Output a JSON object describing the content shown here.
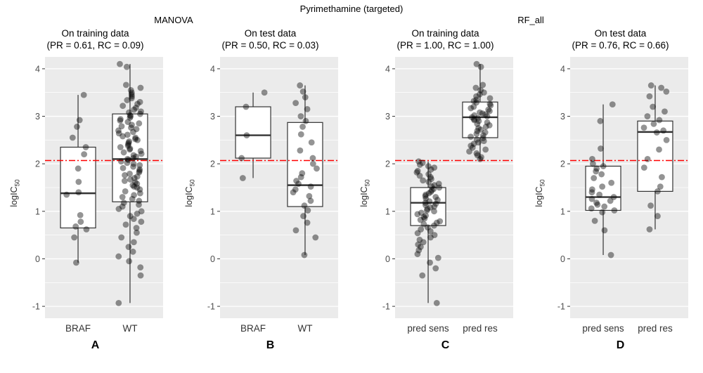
{
  "figure": {
    "title": "Pyrimethamine (targeted)",
    "methods": [
      "MANOVA",
      "RF_all"
    ],
    "ylabel_main": "logIC",
    "ylabel_sub": "50"
  },
  "style": {
    "panel_bg": "#EBEBEB",
    "grid_color": "#FFFFFF",
    "box_fill": "#FFFFFF",
    "box_stroke": "#333333",
    "point_color": "#000000",
    "point_opacity": 0.42,
    "reference_color": "#FF0000",
    "tick_text_color": "#4D4D4D",
    "axis_tick_color": "#333333"
  },
  "chart_data": [
    {
      "type": "boxplot",
      "panel_letter": "A",
      "title": "On training data",
      "subtitle": "(PR = 0.61, RC = 0.09)",
      "ylabel": "logIC50",
      "ylim": [
        -1.25,
        4.25
      ],
      "yticks": [
        -1,
        0,
        1,
        2,
        3,
        4
      ],
      "reference_line": 2.07,
      "categories": [
        "BRAF",
        "WT"
      ],
      "groups": [
        {
          "label": "BRAF",
          "box": {
            "whisker_low": -0.08,
            "q1": 0.65,
            "median": 1.38,
            "q3": 2.35,
            "whisker_high": 3.45
          },
          "points": [
            3.45,
            2.92,
            2.78,
            2.55,
            2.35,
            2.2,
            1.9,
            1.62,
            1.4,
            1.35,
            0.92,
            0.78,
            0.68,
            0.62,
            0.45,
            -0.08
          ]
        },
        {
          "label": "WT",
          "box": {
            "whisker_low": -0.93,
            "q1": 1.2,
            "median": 2.1,
            "q3": 3.05,
            "whisker_high": 4.1
          },
          "points": [
            4.1,
            4.04,
            3.66,
            3.6,
            3.55,
            3.5,
            3.46,
            3.42,
            3.38,
            3.34,
            3.3,
            3.26,
            3.22,
            3.18,
            3.14,
            3.1,
            3.08,
            3.05,
            3.02,
            3.0,
            2.97,
            2.94,
            2.91,
            2.88,
            2.85,
            2.82,
            2.79,
            2.76,
            2.73,
            2.7,
            2.67,
            2.64,
            2.61,
            2.58,
            2.55,
            2.52,
            2.5,
            2.47,
            2.44,
            2.41,
            2.38,
            2.35,
            2.32,
            2.3,
            2.27,
            2.24,
            2.21,
            2.18,
            2.15,
            2.12,
            2.1,
            2.08,
            2.05,
            2.02,
            2.0,
            1.97,
            1.94,
            1.91,
            1.88,
            1.85,
            1.82,
            1.79,
            1.76,
            1.73,
            1.7,
            1.67,
            1.64,
            1.61,
            1.58,
            1.55,
            1.52,
            1.5,
            1.46,
            1.42,
            1.38,
            1.34,
            1.3,
            1.26,
            1.22,
            1.18,
            1.14,
            1.1,
            1.05,
            1.0,
            0.95,
            0.9,
            0.84,
            0.78,
            0.72,
            0.65,
            0.55,
            0.45,
            0.35,
            0.25,
            0.15,
            0.05,
            -0.05,
            -0.18,
            -0.35,
            -0.93
          ]
        }
      ]
    },
    {
      "type": "boxplot",
      "panel_letter": "B",
      "title": "On test data",
      "subtitle": "(PR = 0.50, RC = 0.03)",
      "ylabel": "logIC50",
      "ylim": [
        -1.25,
        4.25
      ],
      "yticks": [
        -1,
        0,
        1,
        2,
        3,
        4
      ],
      "reference_line": 2.07,
      "categories": [
        "BRAF",
        "WT"
      ],
      "groups": [
        {
          "label": "BRAF",
          "box": {
            "whisker_low": 1.7,
            "q1": 2.12,
            "median": 2.6,
            "q3": 3.2,
            "whisker_high": 3.5
          },
          "points": [
            3.5,
            3.2,
            2.6,
            2.12,
            1.7
          ]
        },
        {
          "label": "WT",
          "box": {
            "whisker_low": 0.08,
            "q1": 1.1,
            "median": 1.55,
            "q3": 2.87,
            "whisker_high": 3.65
          },
          "points": [
            3.65,
            3.52,
            3.4,
            3.28,
            3.15,
            3.0,
            2.9,
            2.78,
            2.62,
            2.45,
            2.28,
            2.12,
            2.0,
            1.9,
            1.8,
            1.72,
            1.64,
            1.58,
            1.52,
            1.46,
            1.4,
            1.32,
            1.22,
            1.12,
            1.02,
            0.9,
            0.76,
            0.6,
            0.45,
            0.08
          ]
        }
      ]
    },
    {
      "type": "boxplot",
      "panel_letter": "C",
      "title": "On training data",
      "subtitle": "(PR = 1.00, RC = 1.00)",
      "ylabel": "logIC50",
      "ylim": [
        -1.25,
        4.25
      ],
      "yticks": [
        -1,
        0,
        1,
        2,
        3,
        4
      ],
      "reference_line": 2.07,
      "categories": [
        "pred sens",
        "pred res"
      ],
      "groups": [
        {
          "label": "pred sens",
          "box": {
            "whisker_low": -0.93,
            "q1": 0.7,
            "median": 1.18,
            "q3": 1.5,
            "whisker_high": 2.05
          },
          "points": [
            2.05,
            2.02,
            1.98,
            1.95,
            1.92,
            1.88,
            1.85,
            1.82,
            1.78,
            1.75,
            1.72,
            1.68,
            1.65,
            1.62,
            1.58,
            1.55,
            1.52,
            1.5,
            1.47,
            1.44,
            1.41,
            1.38,
            1.35,
            1.32,
            1.3,
            1.27,
            1.24,
            1.21,
            1.18,
            1.16,
            1.13,
            1.1,
            1.08,
            1.05,
            1.02,
            1.0,
            0.97,
            0.94,
            0.91,
            0.88,
            0.85,
            0.82,
            0.79,
            0.76,
            0.73,
            0.7,
            0.66,
            0.62,
            0.58,
            0.54,
            0.5,
            0.45,
            0.4,
            0.35,
            0.3,
            0.25,
            0.18,
            0.1,
            0.02,
            -0.08,
            -0.2,
            -0.35,
            -0.93
          ]
        },
        {
          "label": "pred res",
          "box": {
            "whisker_low": 2.1,
            "q1": 2.55,
            "median": 2.98,
            "q3": 3.3,
            "whisker_high": 4.1
          },
          "points": [
            4.1,
            4.04,
            3.66,
            3.6,
            3.55,
            3.5,
            3.46,
            3.42,
            3.38,
            3.35,
            3.32,
            3.29,
            3.26,
            3.23,
            3.2,
            3.17,
            3.14,
            3.11,
            3.08,
            3.06,
            3.04,
            3.02,
            3.0,
            2.98,
            2.96,
            2.94,
            2.92,
            2.9,
            2.87,
            2.84,
            2.81,
            2.78,
            2.75,
            2.72,
            2.69,
            2.66,
            2.63,
            2.6,
            2.57,
            2.54,
            2.51,
            2.48,
            2.45,
            2.42,
            2.38,
            2.34,
            2.3,
            2.26,
            2.22,
            2.18,
            2.14,
            2.1
          ]
        }
      ]
    },
    {
      "type": "boxplot",
      "panel_letter": "D",
      "title": "On test data",
      "subtitle": "(PR = 0.76, RC = 0.66)",
      "ylabel": "logIC50",
      "ylim": [
        -1.25,
        4.25
      ],
      "yticks": [
        -1,
        0,
        1,
        2,
        3,
        4
      ],
      "reference_line": 2.07,
      "categories": [
        "pred sens",
        "pred res"
      ],
      "groups": [
        {
          "label": "pred sens",
          "box": {
            "whisker_low": 0.08,
            "q1": 1.02,
            "median": 1.3,
            "q3": 1.95,
            "whisker_high": 3.25
          },
          "points": [
            3.25,
            2.9,
            2.32,
            2.1,
            2.0,
            1.95,
            1.9,
            1.84,
            1.78,
            1.7,
            1.6,
            1.52,
            1.46,
            1.4,
            1.35,
            1.3,
            1.26,
            1.22,
            1.18,
            1.14,
            1.1,
            1.06,
            1.02,
            0.98,
            0.8,
            0.6,
            0.08
          ]
        },
        {
          "label": "pred res",
          "box": {
            "whisker_low": 0.62,
            "q1": 1.42,
            "median": 2.67,
            "q3": 2.9,
            "whisker_high": 3.65
          },
          "points": [
            3.65,
            3.6,
            3.52,
            3.42,
            3.2,
            3.1,
            3.0,
            2.92,
            2.84,
            2.76,
            2.7,
            2.66,
            2.5,
            2.3,
            2.1,
            1.92,
            1.72,
            1.52,
            1.42,
            1.12,
            0.9,
            0.62
          ]
        }
      ]
    }
  ]
}
